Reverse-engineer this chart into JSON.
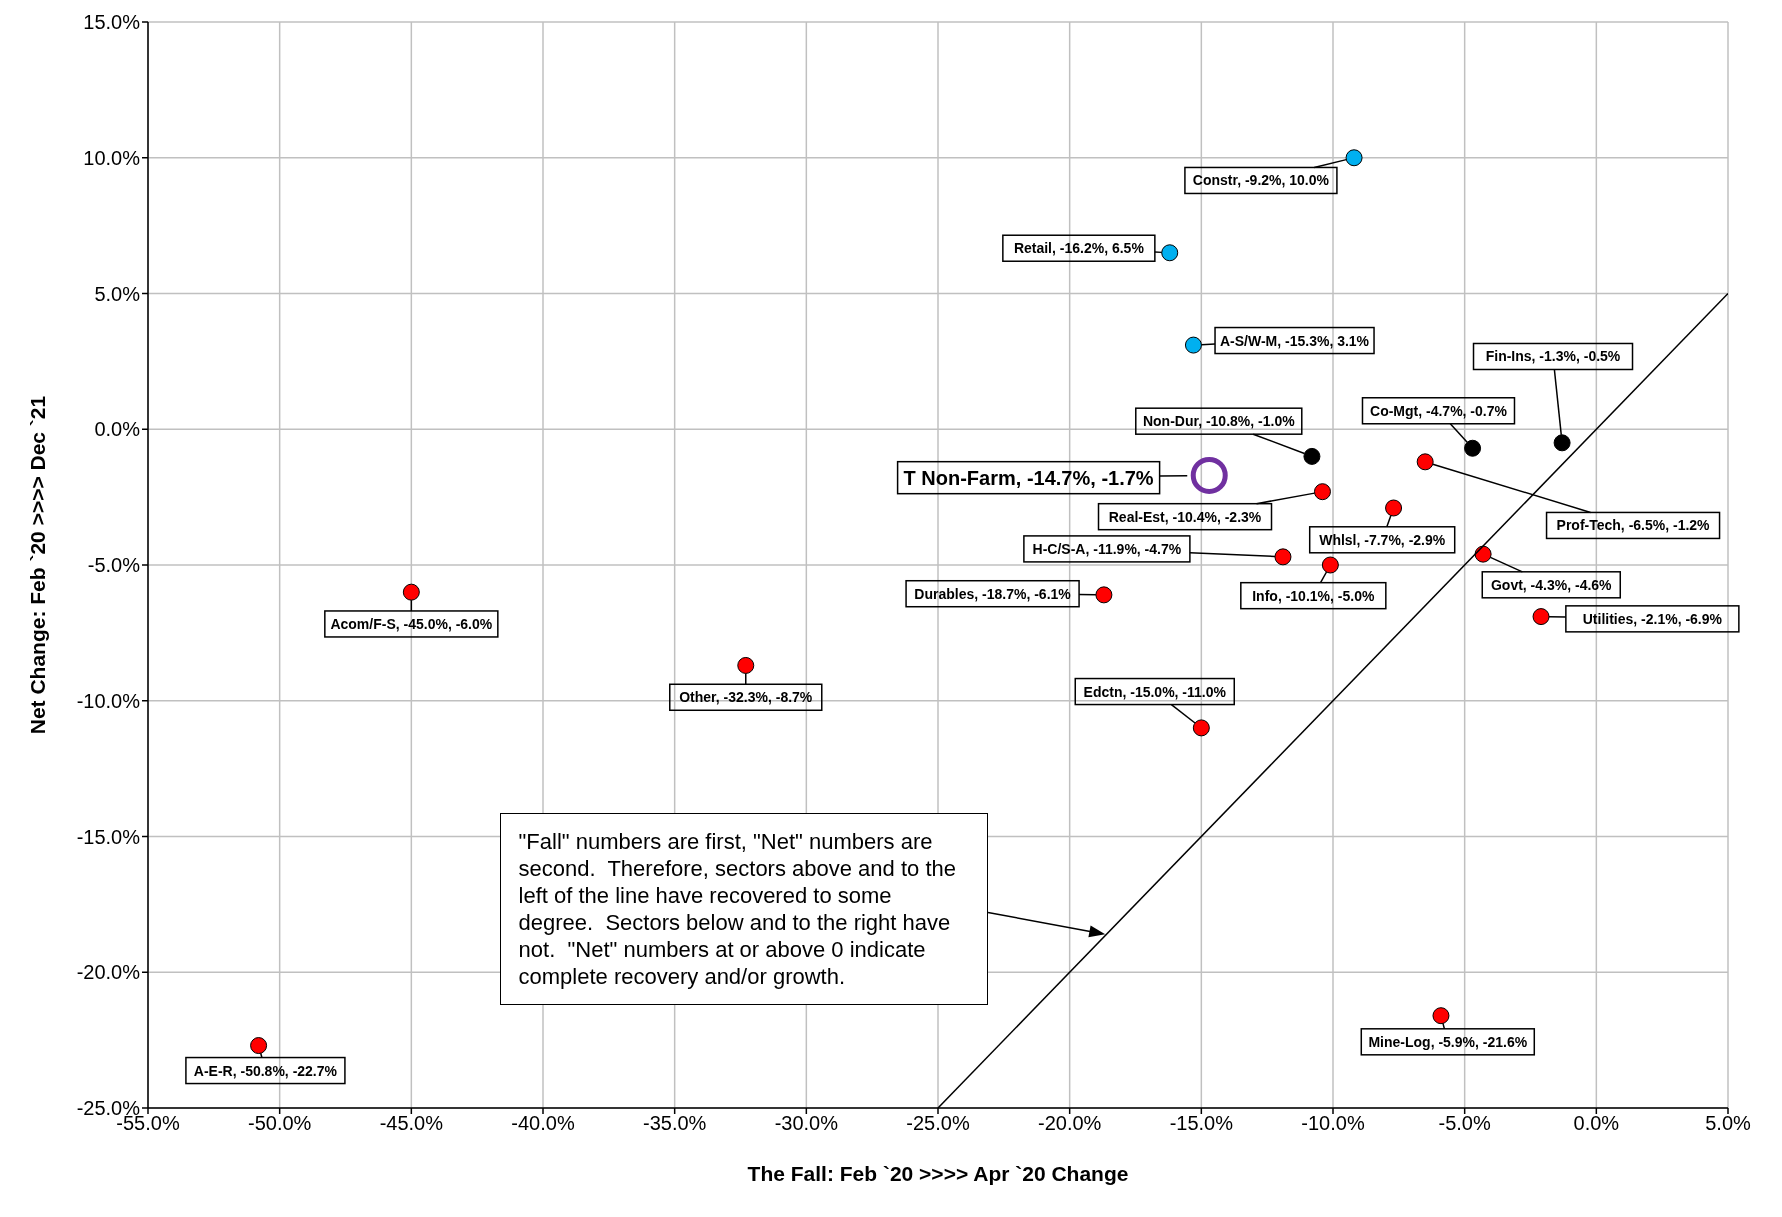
{
  "chart_data": {
    "type": "scatter",
    "xlabel": "The Fall: Feb `20 >>>> Apr `20 Change",
    "ylabel": "Net Change: Feb `20 >>>> Dec `21",
    "xlim": [
      -55,
      5
    ],
    "xticks": [
      {
        "value": -55,
        "label": "-55.0%"
      },
      {
        "value": -50,
        "label": "-50.0%"
      },
      {
        "value": -45,
        "label": "-45.0%"
      },
      {
        "value": -40,
        "label": "-40.0%"
      },
      {
        "value": -35,
        "label": "-35.0%"
      },
      {
        "value": -30,
        "label": "-30.0%"
      },
      {
        "value": -25,
        "label": "-25.0%"
      },
      {
        "value": -20,
        "label": "-20.0%"
      },
      {
        "value": -15,
        "label": "-15.0%"
      },
      {
        "value": -10,
        "label": "-10.0%"
      },
      {
        "value": -5,
        "label": "-5.0%"
      },
      {
        "value": 0,
        "label": "0.0%"
      },
      {
        "value": 5,
        "label": "5.0%"
      }
    ],
    "ylim": [
      -25,
      15
    ],
    "yticks": [
      {
        "value": -25,
        "label": "-25.0%"
      },
      {
        "value": -20,
        "label": "-20.0%"
      },
      {
        "value": -15,
        "label": "-15.0%"
      },
      {
        "value": -10,
        "label": "-10.0%"
      },
      {
        "value": -5,
        "label": "-5.0%"
      },
      {
        "value": 0,
        "label": "0.0%"
      },
      {
        "value": 5,
        "label": "5.0%"
      },
      {
        "value": 10,
        "label": "10.0%"
      },
      {
        "value": 15,
        "label": "15.0%"
      }
    ],
    "grid": true,
    "marker": "circle",
    "series": [
      {
        "color": "#00b0f0",
        "x": [
          -9.2,
          -16.2,
          -15.3
        ],
        "values": [
          10.0,
          6.5,
          3.1
        ]
      },
      {
        "color": "#000000",
        "x": [
          -10.8,
          -4.7,
          -1.3
        ],
        "values": [
          -1.0,
          -0.7,
          -0.5
        ]
      },
      {
        "color": "#7030a0",
        "marker": "circle_open",
        "x": [
          -14.7
        ],
        "values": [
          -1.7
        ]
      },
      {
        "color": "#ff0000",
        "x": [
          -10.4,
          -7.7,
          -6.5,
          -11.9,
          -10.1,
          -4.3,
          -2.1,
          -18.7,
          -45.0,
          -32.3,
          -15.0,
          -5.9,
          -50.8
        ],
        "values": [
          -2.3,
          -2.9,
          -1.2,
          -4.7,
          -5.0,
          -4.6,
          -6.9,
          -6.1,
          -6.0,
          -8.7,
          -11.0,
          -21.6,
          -22.7
        ]
      },
      {
        "type": "line",
        "color": "#000000",
        "marker": "none",
        "x": [
          -25,
          5
        ],
        "values": [
          -25,
          5
        ]
      }
    ],
    "annotations": [
      {
        "text": "Constr, -9.2%, 10.0%",
        "x": -9.2,
        "y": 10.0
      },
      {
        "text": "Retail, -16.2%, 6.5%",
        "x": -16.2,
        "y": 6.5
      },
      {
        "text": "A-S/W-M, -15.3%, 3.1%",
        "x": -15.3,
        "y": 3.1
      },
      {
        "text": "Non-Dur, -10.8%, -1.0%",
        "x": -10.8,
        "y": -1.0
      },
      {
        "text": "Co-Mgt, -4.7%, -0.7%",
        "x": -4.7,
        "y": -0.7
      },
      {
        "text": "Fin-Ins, -1.3%, -0.5%",
        "x": -1.3,
        "y": -0.5
      },
      {
        "text": "T Non-Farm, -14.7%, -1.7%",
        "x": -14.7,
        "y": -1.7
      },
      {
        "text": "Real-Est, -10.4%, -2.3%",
        "x": -10.4,
        "y": -2.3
      },
      {
        "text": "Whlsl, -7.7%, -2.9%",
        "x": -7.7,
        "y": -2.9
      },
      {
        "text": "Prof-Tech, -6.5%, -1.2%",
        "x": -6.5,
        "y": -1.2
      },
      {
        "text": "H-C/S-A, -11.9%, -4.7%",
        "x": -11.9,
        "y": -4.7
      },
      {
        "text": "Info, -10.1%, -5.0%",
        "x": -10.1,
        "y": -5.0
      },
      {
        "text": "Govt, -4.3%, -4.6%",
        "x": -4.3,
        "y": -4.6
      },
      {
        "text": "Utilities, -2.1%, -6.9%",
        "x": -2.1,
        "y": -6.9
      },
      {
        "text": "Durables, -18.7%, -6.1%",
        "x": -18.7,
        "y": -6.1
      },
      {
        "text": "Acom/F-S, -45.0%, -6.0%",
        "x": -45.0,
        "y": -6.0
      },
      {
        "text": "Other, -32.3%, -8.7%",
        "x": -32.3,
        "y": -8.7
      },
      {
        "text": "Edctn, -15.0%, -11.0%",
        "x": -15.0,
        "y": -11.0
      },
      {
        "text": "Mine-Log, -5.9%, -21.6%",
        "x": -5.9,
        "y": -21.6
      },
      {
        "text": "A-E-R, -50.8%, -22.7%",
        "x": -50.8,
        "y": -22.7
      },
      "\"Fall\" numbers are first, \"Net\" numbers are second.  Therefore, sectors above and to the left of the line have recovered to some degree.  Sectors below and to the right have not.  \"Net\" numbers at or above 0 indicate complete recovery and/or growth."
    ]
  }
}
